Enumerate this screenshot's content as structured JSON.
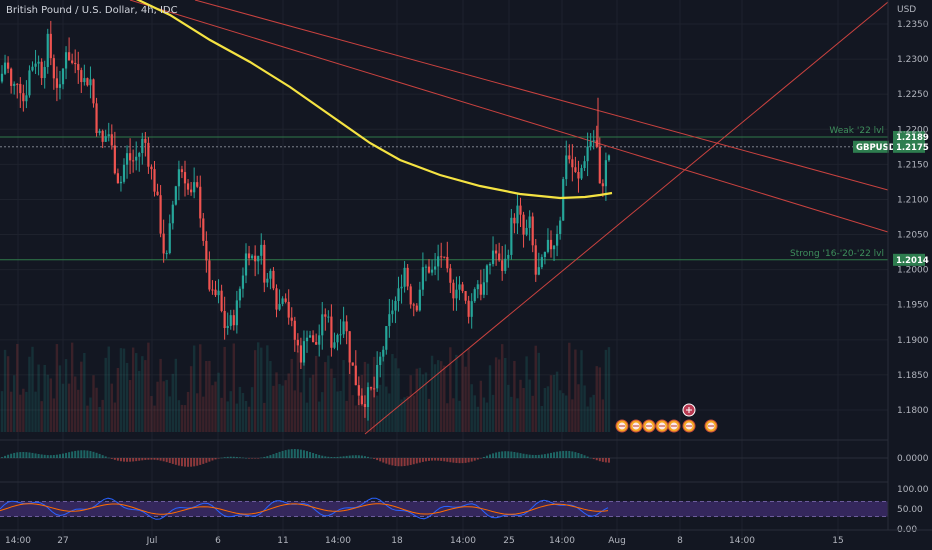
{
  "header": {
    "title": "British Pound / U.S. Dollar, 4h, IDC",
    "currency": "USD"
  },
  "chart_data": {
    "type": "candlestick",
    "symbol": "GBPUSD",
    "timeframe": "4h",
    "ylim": [
      1.1755,
      1.239
    ],
    "y_ticks": [
      "1.2350",
      "1.2300",
      "1.2250",
      "1.2200",
      "1.2150",
      "1.2100",
      "1.2050",
      "1.2000",
      "1.1950",
      "1.1900",
      "1.1850",
      "1.1800"
    ],
    "x_ticks": [
      "14:00",
      "27",
      "Jul",
      "6",
      "11",
      "14:00",
      "18",
      "14:00",
      "25",
      "14:00",
      "Aug",
      "8",
      "14:00",
      "15"
    ],
    "levels": [
      {
        "label": "Weak '22 lvl",
        "value": 1.2189,
        "tag": "1.2189"
      },
      {
        "label": "Strong '16-'20-'22 lvl",
        "value": 1.2014,
        "tag": "1.2014"
      }
    ],
    "last_price": {
      "symbol": "GBPUSD",
      "value": 1.2175,
      "tag": "1.2175"
    },
    "moving_average": {
      "color": "#f5e342",
      "x_end": 610
    },
    "macd": {
      "zero_tick": "0.0000"
    },
    "rsi": {
      "ticks": [
        "100.00",
        "50.00",
        "0.00"
      ],
      "upper": 70,
      "lower": 30
    },
    "colors": {
      "up": "#26a69a",
      "down": "#ef5350",
      "trend": "#c9423f",
      "level": "#2f7a4b",
      "ma": "#f5e342",
      "rsi_band": "#3b2a66",
      "rsi_line": "#2962ff",
      "rsi_signal": "#ff6d00",
      "tag": "#2e7d4f",
      "bg": "#131722"
    },
    "anchors": [
      [
        0,
        1.2268
      ],
      [
        6,
        1.2302
      ],
      [
        12,
        1.225
      ],
      [
        18,
        1.2277
      ],
      [
        24,
        1.2238
      ],
      [
        30,
        1.2287
      ],
      [
        36,
        1.2302
      ],
      [
        42,
        1.2282
      ],
      [
        48,
        1.2325
      ],
      [
        54,
        1.2278
      ],
      [
        60,
        1.2252
      ],
      [
        66,
        1.2318
      ],
      [
        72,
        1.2292
      ],
      [
        78,
        1.2296
      ],
      [
        84,
        1.2268
      ],
      [
        90,
        1.2275
      ],
      [
        96,
        1.221
      ],
      [
        102,
        1.2176
      ],
      [
        108,
        1.22
      ],
      [
        114,
        1.2154
      ],
      [
        120,
        1.212
      ],
      [
        126,
        1.2163
      ],
      [
        132,
        1.2154
      ],
      [
        138,
        1.2162
      ],
      [
        144,
        1.219
      ],
      [
        150,
        1.2148
      ],
      [
        156,
        1.211
      ],
      [
        162,
        1.2045
      ],
      [
        166,
        1.2005
      ],
      [
        172,
        1.2085
      ],
      [
        178,
        1.2145
      ],
      [
        184,
        1.214
      ],
      [
        190,
        1.21
      ],
      [
        196,
        1.212
      ],
      [
        202,
        1.2068
      ],
      [
        206,
        1.2004
      ],
      [
        212,
        1.1958
      ],
      [
        218,
        1.1965
      ],
      [
        224,
        1.192
      ],
      [
        230,
        1.1922
      ],
      [
        236,
        1.194
      ],
      [
        242,
        1.1992
      ],
      [
        248,
        1.2035
      ],
      [
        254,
        1.2008
      ],
      [
        260,
        1.2038
      ],
      [
        266,
        1.1978
      ],
      [
        272,
        1.2002
      ],
      [
        278,
        1.194
      ],
      [
        284,
        1.198
      ],
      [
        290,
        1.1925
      ],
      [
        296,
        1.1895
      ],
      [
        302,
        1.1875
      ],
      [
        308,
        1.1922
      ],
      [
        314,
        1.1885
      ],
      [
        320,
        1.1912
      ],
      [
        326,
        1.1942
      ],
      [
        332,
        1.1893
      ],
      [
        338,
        1.1912
      ],
      [
        344,
        1.1935
      ],
      [
        350,
        1.1875
      ],
      [
        356,
        1.184
      ],
      [
        362,
        1.1815
      ],
      [
        368,
        1.182
      ],
      [
        374,
        1.183
      ],
      [
        380,
        1.187
      ],
      [
        386,
        1.1905
      ],
      [
        392,
        1.1945
      ],
      [
        398,
        1.196
      ],
      [
        404,
        1.2008
      ],
      [
        410,
        1.1962
      ],
      [
        416,
        1.1948
      ],
      [
        422,
        1.1992
      ],
      [
        428,
        1.2005
      ],
      [
        434,
        1.1992
      ],
      [
        440,
        1.2028
      ],
      [
        446,
        1.1995
      ],
      [
        452,
        1.1965
      ],
      [
        458,
        1.1988
      ],
      [
        464,
        1.1955
      ],
      [
        470,
        1.194
      ],
      [
        476,
        1.1988
      ],
      [
        482,
        1.1968
      ],
      [
        488,
        1.1998
      ],
      [
        494,
        1.2035
      ],
      [
        500,
        1.2
      ],
      [
        506,
        1.2012
      ],
      [
        512,
        1.207
      ],
      [
        518,
        1.2085
      ],
      [
        524,
        1.2045
      ],
      [
        530,
        1.2065
      ],
      [
        536,
        1.199
      ],
      [
        542,
        1.2005
      ],
      [
        548,
        1.203
      ],
      [
        554,
        1.204
      ],
      [
        560,
        1.2075
      ],
      [
        566,
        1.217
      ],
      [
        572,
        1.2148
      ],
      [
        578,
        1.2122
      ],
      [
        584,
        1.216
      ],
      [
        590,
        1.2185
      ],
      [
        596,
        1.2185
      ],
      [
        600,
        1.211
      ],
      [
        606,
        1.215
      ],
      [
        610,
        1.217
      ]
    ]
  }
}
